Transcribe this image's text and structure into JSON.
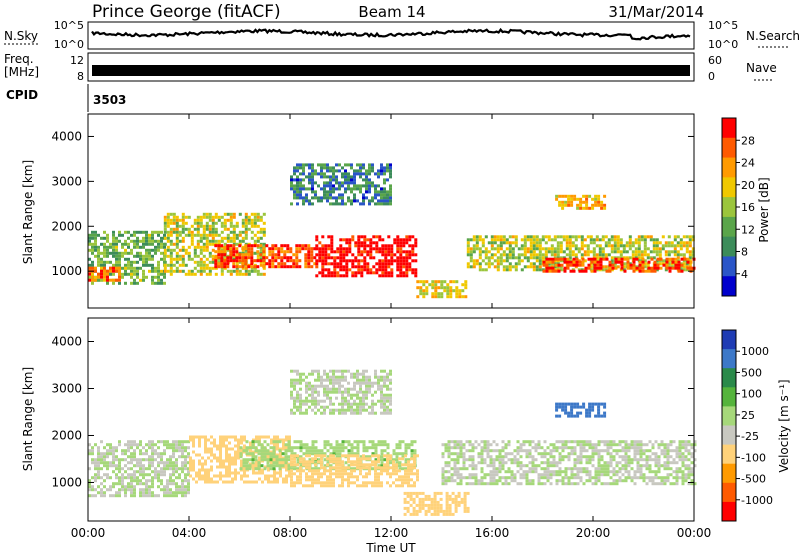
{
  "header": {
    "station": "Prince George (fitACF)",
    "beam": "Beam 14",
    "date": "31/Mar/2014"
  },
  "strips": {
    "nsky": {
      "label": "N.Sky",
      "ticks": [
        "10^5",
        "10^0"
      ]
    },
    "nsearch": {
      "label": "N.Search"
    },
    "freq": {
      "label_line1": "Freq.",
      "label_line2": "[MHz]",
      "ticks": [
        "12",
        "8"
      ]
    },
    "nave": {
      "label": "Nave",
      "ticks": [
        "60",
        "0"
      ]
    },
    "cpid": {
      "label": "CPID",
      "value": "3503"
    }
  },
  "panels": {
    "power": {
      "ylabel": "Slant Range [km]",
      "yticks": [
        "4000",
        "3000",
        "2000",
        "1000"
      ]
    },
    "velocity": {
      "ylabel": "Slant Range [km]",
      "yticks": [
        "4000",
        "3000",
        "2000",
        "1000"
      ]
    }
  },
  "colorbars": {
    "power": {
      "title": "Power [dB]",
      "ticks": [
        "28",
        "24",
        "20",
        "16",
        "12",
        "8",
        "4"
      ],
      "colors": [
        "#0000cc",
        "#2a55c8",
        "#3c8c5a",
        "#5aa54a",
        "#9bc53c",
        "#f0c800",
        "#ff9a00",
        "#ff5a00",
        "#ff0000"
      ]
    },
    "velocity": {
      "title": "Velocity [m s⁻¹]",
      "ticks": [
        "1000",
        "500",
        "100",
        "25",
        "-25",
        "-100",
        "-500",
        "-1000"
      ],
      "colors": [
        "#1f3cb4",
        "#3c78c8",
        "#2a8a4a",
        "#55b43c",
        "#a6d87a",
        "#c8c8c0",
        "#ffd27a",
        "#ff9a00",
        "#ff5a00",
        "#ff0000"
      ]
    }
  },
  "xaxis": {
    "title": "Time UT",
    "ticks": [
      "00:00",
      "04:00",
      "08:00",
      "12:00",
      "16:00",
      "20:00",
      "00:00"
    ]
  },
  "chart_data": [
    {
      "type": "heatmap",
      "title": "Power [dB]",
      "xlabel": "Time UT",
      "ylabel": "Slant Range [km]",
      "x_range_hours": [
        0,
        24
      ],
      "ylim": [
        180,
        4500
      ],
      "color_scale": [
        0,
        30
      ],
      "echo_regions": [
        {
          "t0": 0.0,
          "t1": 3.0,
          "r0": 700,
          "r1": 1900,
          "level": 12
        },
        {
          "t0": 0.0,
          "t1": 1.2,
          "r0": 800,
          "r1": 1100,
          "level": 24
        },
        {
          "t0": 3.0,
          "t1": 7.0,
          "r0": 900,
          "r1": 2300,
          "level": 16
        },
        {
          "t0": 5.0,
          "t1": 9.0,
          "r0": 1100,
          "r1": 1600,
          "level": 26
        },
        {
          "t0": 9.0,
          "t1": 13.0,
          "r0": 900,
          "r1": 1800,
          "level": 30
        },
        {
          "t0": 13.0,
          "t1": 15.0,
          "r0": 400,
          "r1": 800,
          "level": 18
        },
        {
          "t0": 15.0,
          "t1": 24.0,
          "r0": 1000,
          "r1": 1800,
          "level": 16
        },
        {
          "t0": 18.0,
          "t1": 24.0,
          "r0": 1000,
          "r1": 1300,
          "level": 26
        },
        {
          "t0": 8.0,
          "t1": 12.0,
          "r0": 2500,
          "r1": 3400,
          "level": 8
        },
        {
          "t0": 18.5,
          "t1": 20.5,
          "r0": 2400,
          "r1": 2700,
          "level": 20
        }
      ]
    },
    {
      "type": "heatmap",
      "title": "Velocity [m s⁻¹]",
      "xlabel": "Time UT",
      "ylabel": "Slant Range [km]",
      "x_range_hours": [
        0,
        24
      ],
      "ylim": [
        180,
        4500
      ],
      "color_scale": [
        -1000,
        1000
      ],
      "echo_regions": [
        {
          "t0": 0.0,
          "t1": 4.0,
          "r0": 700,
          "r1": 1900,
          "level": 0
        },
        {
          "t0": 4.0,
          "t1": 8.0,
          "r0": 1000,
          "r1": 2000,
          "level": -300
        },
        {
          "t0": 6.0,
          "t1": 13.0,
          "r0": 1300,
          "r1": 1900,
          "level": 120
        },
        {
          "t0": 8.0,
          "t1": 13.0,
          "r0": 900,
          "r1": 1600,
          "level": -300
        },
        {
          "t0": 12.5,
          "t1": 15.0,
          "r0": 300,
          "r1": 800,
          "level": -300
        },
        {
          "t0": 14.0,
          "t1": 24.0,
          "r0": 1000,
          "r1": 1900,
          "level": 0
        },
        {
          "t0": 8.0,
          "t1": 12.0,
          "r0": 2500,
          "r1": 3400,
          "level": 0
        },
        {
          "t0": 18.5,
          "t1": 20.5,
          "r0": 2400,
          "r1": 2700,
          "level": 700
        }
      ]
    }
  ]
}
